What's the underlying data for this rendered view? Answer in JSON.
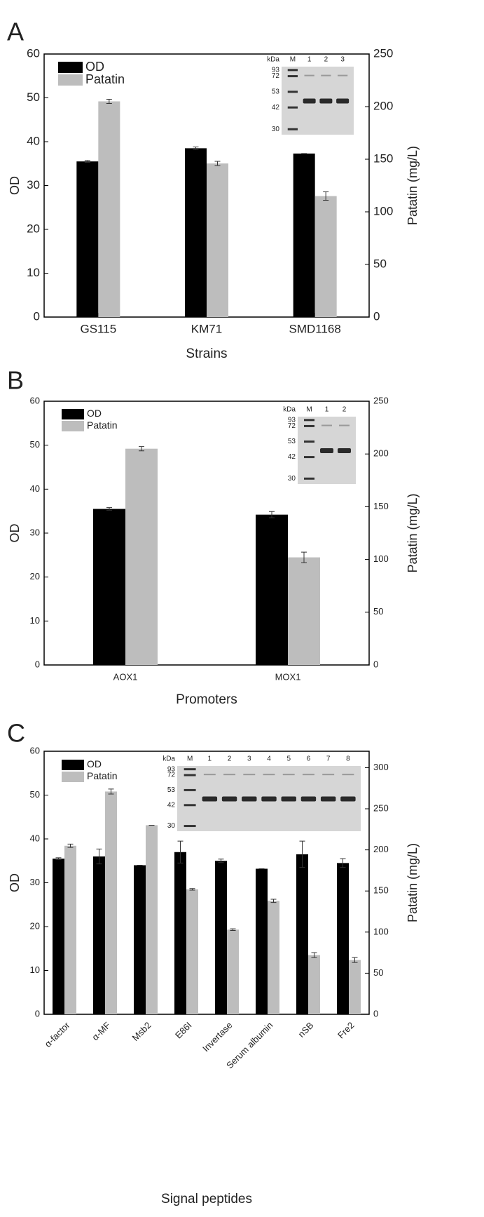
{
  "chart_data": [
    {
      "type": "bar",
      "panel": "A",
      "x_label": "Strains",
      "y_label": "OD",
      "y2_label": "Patatin (mg/L)",
      "categories": [
        "GS115",
        "KM71",
        "SMD1168"
      ],
      "series": [
        {
          "name": "OD",
          "color": "#000000",
          "values": [
            35.5,
            38.5,
            37.3
          ],
          "errors": [
            0.2,
            0.3,
            0
          ]
        },
        {
          "name": "Patatin",
          "color": "#bdbdbd",
          "axis": "y2",
          "values": [
            205,
            146,
            115
          ],
          "errors": [
            2,
            2,
            4
          ]
        }
      ],
      "ylim": [
        0,
        60
      ],
      "yticks": [
        0,
        10,
        20,
        30,
        40,
        50,
        60
      ],
      "y2lim": [
        0,
        250
      ],
      "y2ticks": [
        0,
        50,
        100,
        150,
        200,
        250
      ],
      "inset": {
        "unit": "kDa",
        "lanes": [
          "M",
          "1",
          "2",
          "3"
        ],
        "markers": [
          "93",
          "72",
          "53",
          "42",
          "30"
        ]
      }
    },
    {
      "type": "bar",
      "panel": "B",
      "x_label": "Promoters",
      "y_label": "OD",
      "y2_label": "Patatin (mg/L)",
      "categories": [
        "AOX1",
        "MOX1"
      ],
      "series": [
        {
          "name": "OD",
          "color": "#000000",
          "values": [
            35.5,
            34.2
          ],
          "errors": [
            0.3,
            0.7
          ]
        },
        {
          "name": "Patatin",
          "color": "#bdbdbd",
          "axis": "y2",
          "values": [
            205,
            102
          ],
          "errors": [
            2,
            5
          ]
        }
      ],
      "ylim": [
        0,
        60
      ],
      "yticks": [
        0,
        10,
        20,
        30,
        40,
        50,
        60
      ],
      "y2lim": [
        0,
        250
      ],
      "y2ticks": [
        0,
        50,
        100,
        150,
        200,
        250
      ],
      "inset": {
        "unit": "kDa",
        "lanes": [
          "M",
          "1",
          "2"
        ],
        "markers": [
          "93",
          "72",
          "53",
          "42",
          "30"
        ]
      }
    },
    {
      "type": "bar",
      "panel": "C",
      "x_label": "Signal peptides",
      "y_label": "OD",
      "y2_label": "Patatin (mg/L)",
      "categories": [
        "α-factor",
        "α-MF",
        "Msb2",
        "E86I",
        "Invertase",
        "Serum albumin",
        "nSB",
        "Fre2"
      ],
      "series": [
        {
          "name": "OD",
          "color": "#000000",
          "values": [
            35.5,
            36,
            34,
            37,
            35,
            33.2,
            36.5,
            34.5
          ],
          "errors": [
            0.2,
            1.7,
            0,
            2.5,
            0.4,
            0,
            3,
            1
          ]
        },
        {
          "name": "Patatin",
          "color": "#bdbdbd",
          "axis": "y2",
          "values": [
            205,
            271,
            230,
            152,
            103,
            138,
            72,
            66
          ],
          "errors": [
            2,
            3,
            0,
            1,
            1,
            2,
            3,
            3
          ]
        }
      ],
      "ylim": [
        0,
        60
      ],
      "yticks": [
        0,
        10,
        20,
        30,
        40,
        50,
        60
      ],
      "y2lim": [
        0,
        320
      ],
      "y2ticks": [
        0,
        50,
        100,
        150,
        200,
        250,
        300
      ],
      "inset": {
        "unit": "kDa",
        "lanes": [
          "M",
          "1",
          "2",
          "3",
          "4",
          "5",
          "6",
          "7",
          "8"
        ],
        "markers": [
          "93",
          "72",
          "53",
          "42",
          "30"
        ]
      }
    }
  ]
}
